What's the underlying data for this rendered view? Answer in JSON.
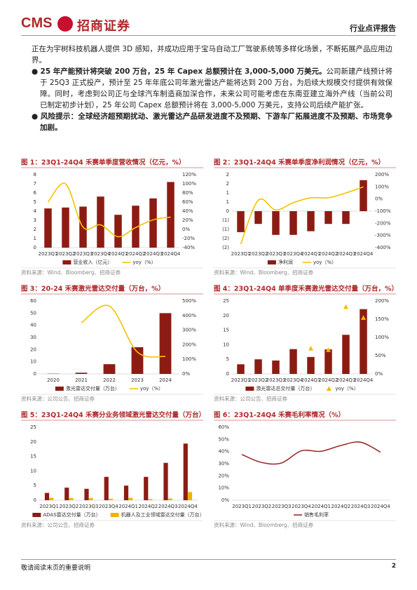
{
  "header": {
    "logo_en": "CMS",
    "logo_cn": "招商证券",
    "report_type": "行业点评报告"
  },
  "body": {
    "intro": "正在为宇树科技机器人提供 3D 感知，并成功应用于宝马自动工厂驾驶系统等多样化场景，不断拓展产品应用边界。",
    "points": [
      {
        "bold": "25 年产能预计将突破 200 万台，25 年 Capex 总额预计在 3,000-5,000 万美元。",
        "text": "公司新建产线预计将于 25Q3 正式投产，预计至 25 年年底公司年激光雷达产能将达到 200 万台，为后续大规模交付提供有效保障。同时，考虑到公司正与全球汽车制造商加深合作，未来公司可能考虑在东南亚建立海外产线（当前公司已制定初步计划），25 年公司 Capex 总额预计将在 3,000-5,000 万美元，支持公司后续产能扩张。"
      },
      {
        "bold": "风险提示：全球经济超预期扰动、激光雷达产品研发进度不及预期、下游车厂拓展进度不及预期、市场竞争加剧。"
      }
    ]
  },
  "chart_data": [
    {
      "type": "bar",
      "title": "图 1：23Q1-24Q4 禾赛单季度营收情况（亿元，%）",
      "grid": false,
      "legend": "bottom",
      "categories": [
        "2023Q1",
        "2023Q2",
        "2023Q3",
        "2023Q4",
        "2024Q1",
        "2024Q2",
        "2024Q3",
        "2024Q4"
      ],
      "series": [
        {
          "name": "营业收入（亿元）",
          "type": "bar",
          "color": "#8c1c13",
          "values": [
            4.3,
            4.4,
            4.5,
            5.6,
            3.6,
            4.6,
            5.4,
            7.2
          ]
        },
        {
          "name": "yoy（%）",
          "type": "line",
          "axis": "y2",
          "color": "#f5c200",
          "values": [
            60,
            100,
            5,
            10,
            -16,
            4,
            21,
            27
          ]
        }
      ],
      "ylim": [
        0,
        8
      ],
      "yticks": [
        0,
        1,
        2,
        3,
        4,
        5,
        6,
        7,
        8
      ],
      "y2lim": [
        -40,
        120
      ],
      "y2ticks": [
        {
          "value": -40,
          "label": "-40%"
        },
        {
          "value": -20,
          "label": "-20%"
        },
        {
          "value": 0,
          "label": "0%"
        },
        {
          "value": 20,
          "label": "20%"
        },
        {
          "value": 40,
          "label": "40%"
        },
        {
          "value": 60,
          "label": "60%"
        },
        {
          "value": 80,
          "label": "80%"
        },
        {
          "value": 100,
          "label": "100%"
        },
        {
          "value": 120,
          "label": "120%"
        }
      ],
      "source": "资料来源：Wind、Bloomberg、招商证券"
    },
    {
      "type": "bar",
      "title": "图 2：23Q1-24Q4 禾赛单季度净利润情况（亿元，%）",
      "grid": false,
      "legend": "bottom",
      "categories": [
        "2023Q1",
        "2023Q2",
        "2023Q3",
        "2023Q4",
        "2024Q1",
        "2024Q2",
        "2024Q3",
        "2024Q4"
      ],
      "series": [
        {
          "name": "净利润",
          "type": "bar",
          "color": "#8c1c13",
          "values": [
            -1.15,
            -0.7,
            -1.3,
            -1.3,
            -1.1,
            -0.7,
            -0.7,
            1.7
          ]
        },
        {
          "name": "yoy（%）",
          "type": "line",
          "axis": "y2",
          "color": "#f5c200",
          "values": [
            -370,
            -10,
            -90,
            -30,
            10,
            10,
            50,
            100
          ]
        }
      ],
      "ylim": [
        -2,
        2
      ],
      "yticks": [
        {
          "value": -2,
          "label": "(2)"
        },
        {
          "value": -1.5,
          "label": "(2)"
        },
        {
          "value": -1,
          "label": "(1)"
        },
        {
          "value": -0.5,
          "label": "(1)"
        },
        0,
        {
          "value": 0.5,
          "label": "1"
        },
        1,
        {
          "value": 1.5,
          "label": "2"
        },
        2
      ],
      "y2lim": [
        -400,
        200
      ],
      "y2ticks": [
        {
          "value": -400,
          "label": "-400%"
        },
        {
          "value": -300,
          "label": "-300%"
        },
        {
          "value": -200,
          "label": "-200%"
        },
        {
          "value": -100,
          "label": "-100%"
        },
        {
          "value": 0,
          "label": "0%"
        },
        {
          "value": 100,
          "label": "100%"
        },
        {
          "value": 200,
          "label": "200%"
        }
      ],
      "source": "资料来源：Wind、Bloomberg、招商证券"
    },
    {
      "type": "bar",
      "title": "图 3：20-24 禾赛激光雷达交付量（万台，%）",
      "grid": false,
      "legend": "bottom",
      "categories": [
        "2020",
        "2021",
        "2022",
        "2023",
        "2024"
      ],
      "series": [
        {
          "name": "激光雷达交付量（万台）",
          "type": "bar",
          "color": "#8c1c13",
          "values": [
            0.2,
            1.0,
            8,
            22,
            50
          ]
        },
        {
          "name": "yoy（%）",
          "type": "line",
          "axis": "y2",
          "color": "#f5c200",
          "values": [
            null,
            350,
            465,
            150,
            120
          ]
        }
      ],
      "ylim": [
        0,
        60
      ],
      "yticks": [
        0,
        10,
        20,
        30,
        40,
        50,
        60
      ],
      "y2lim": [
        0,
        500
      ],
      "y2ticks": [
        {
          "value": 0,
          "label": "0%"
        },
        {
          "value": 100,
          "label": "100%"
        },
        {
          "value": 200,
          "label": "200%"
        },
        {
          "value": 300,
          "label": "300%"
        },
        {
          "value": 400,
          "label": "400%"
        },
        {
          "value": 500,
          "label": "500%"
        }
      ],
      "source": "资料来源：公司公告、招商证券"
    },
    {
      "type": "bar",
      "title": "图 4：23Q1-24Q4 单季度禾赛激光雷达交付量（万台，%）",
      "grid": false,
      "legend": "bottom",
      "categories": [
        "2023Q1",
        "2023Q2",
        "2023Q3",
        "2023Q4",
        "2024Q1",
        "2024Q2",
        "2024Q3",
        "2024Q4"
      ],
      "series": [
        {
          "name": "激光雷达总交付量（万台）",
          "type": "bar",
          "color": "#8c1c13",
          "values": [
            3.3,
            5.0,
            4.6,
            8.5,
            5.8,
            8.4,
            13.4,
            22.2
          ]
        },
        {
          "name": "yoy（%）",
          "type": "scatter",
          "axis": "y2",
          "color": "#f5b800",
          "values": [
            null,
            null,
            null,
            null,
            70,
            66,
            184,
            154
          ]
        }
      ],
      "ylim": [
        0,
        25
      ],
      "yticks": [
        0,
        5,
        10,
        15,
        20,
        25
      ],
      "y2lim": [
        0,
        200
      ],
      "y2ticks": [
        {
          "value": 0,
          "label": "0%"
        },
        {
          "value": 50,
          "label": "50%"
        },
        {
          "value": 100,
          "label": "100%"
        },
        {
          "value": 150,
          "label": "150%"
        },
        {
          "value": 200,
          "label": "200%"
        }
      ],
      "source": "资料来源：公司公告、招商证券"
    },
    {
      "type": "bar",
      "title": "图 5：23Q1-24Q4 禾赛分业务领域激光雷达交付量（万台）",
      "grid": false,
      "legend": "bottom",
      "categories": [
        "2023Q1",
        "2023Q2",
        "2023Q3",
        "2023Q4",
        "2024Q1",
        "2024Q2",
        "2024Q3",
        "2024Q4"
      ],
      "series": [
        {
          "name": "ADAS雷达交付量（万台）",
          "type": "bar",
          "color": "#8c1c13",
          "values": [
            2.5,
            4.3,
            3.9,
            8.0,
            5.0,
            8.0,
            12.8,
            19.4
          ]
        },
        {
          "name": "机器人及工业领域雷达交付量（万台）",
          "type": "bar",
          "color": "#f0b400",
          "values": [
            0.8,
            0.7,
            0.7,
            0.5,
            0.8,
            0.4,
            0.6,
            2.8
          ]
        }
      ],
      "ylim": [
        0,
        25
      ],
      "yticks": [
        0,
        5,
        10,
        15,
        20,
        25
      ],
      "source": "资料来源：公司公告、招商证券"
    },
    {
      "type": "line",
      "title": "图 6：23Q1-24Q4 禾赛毛利率情况（%）",
      "grid": false,
      "legend": "bottom",
      "categories": [
        "2023Q1",
        "2023Q2",
        "2023Q3",
        "2023Q4",
        "2024Q1",
        "2024Q2",
        "2024Q3",
        "2024Q4"
      ],
      "series": [
        {
          "name": "销售毛利率",
          "type": "line",
          "color": "#9b2a2a",
          "values": [
            37.6,
            31.0,
            30.6,
            40.6,
            40.2,
            45.0,
            47.7,
            39.5
          ]
        }
      ],
      "ylim": [
        0,
        60
      ],
      "yticks": [
        {
          "value": 0,
          "label": "0%"
        },
        {
          "value": 10,
          "label": "10%"
        },
        {
          "value": 20,
          "label": "20%"
        },
        {
          "value": 30,
          "label": "30%"
        },
        {
          "value": 40,
          "label": "40%"
        },
        {
          "value": 50,
          "label": "50%"
        },
        {
          "value": 60,
          "label": "60%"
        }
      ],
      "source": "资料来源：Wind、Bloomberg、招商证券"
    }
  ],
  "footer": {
    "note": "敬请阅读末页的重要说明",
    "page": "2"
  }
}
